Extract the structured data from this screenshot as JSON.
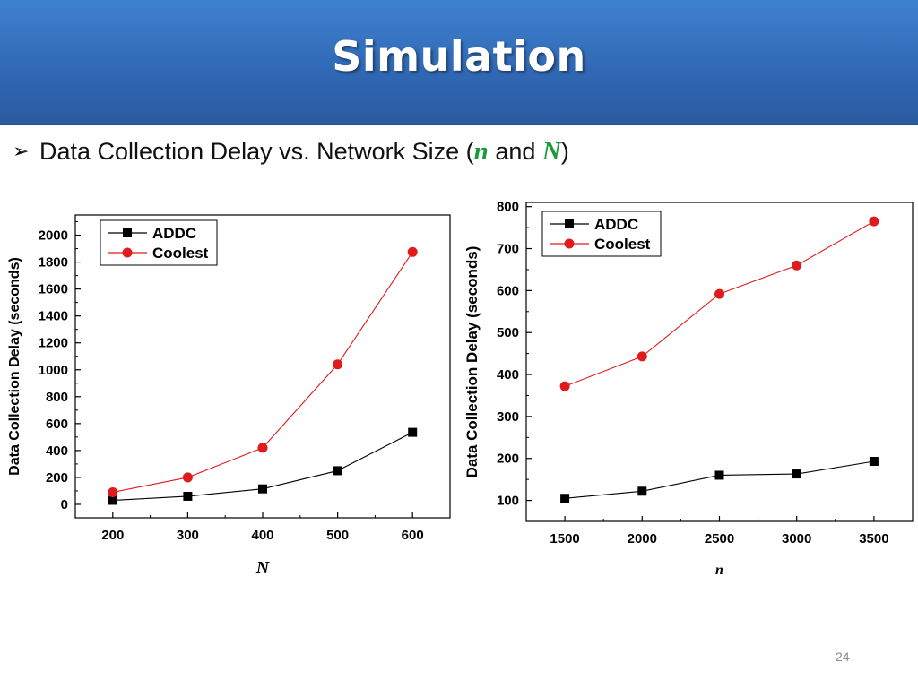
{
  "slide": {
    "title": "Simulation",
    "bullet": {
      "icon": "arrow-bullet-icon",
      "text_before": "Data Collection Delay vs. Network Size (",
      "var1": "n",
      "text_middle": " and ",
      "var2": "N",
      "text_after": ")"
    },
    "page_number": "24"
  },
  "colors": {
    "banner": "#3169b6",
    "title": "#ffffff",
    "highlight_var": "#1a9a3c",
    "addc": "#000000",
    "coolest": "#e01b1b"
  },
  "chart_data": [
    {
      "type": "line",
      "xlabel": "N",
      "ylabel": "Data Collection Delay (seconds)",
      "x": [
        200,
        300,
        400,
        500,
        600
      ],
      "xlim": [
        150,
        650
      ],
      "ylim": [
        -100,
        2150
      ],
      "xticks": [
        200,
        300,
        400,
        500,
        600
      ],
      "yticks": [
        0,
        200,
        400,
        600,
        800,
        1000,
        1200,
        1400,
        1600,
        1800,
        2000
      ],
      "legend_position": "top-left",
      "series": [
        {
          "name": "ADDC",
          "marker": "square",
          "color": "#000000",
          "values": [
            30,
            60,
            115,
            250,
            535
          ]
        },
        {
          "name": "Coolest",
          "marker": "circle",
          "color": "#e01b1b",
          "values": [
            90,
            200,
            420,
            1040,
            1875
          ]
        }
      ]
    },
    {
      "type": "line",
      "xlabel": "n",
      "ylabel": "Data Collection Delay (seconds)",
      "x": [
        1500,
        2000,
        2500,
        3000,
        3500
      ],
      "xlim": [
        1250,
        3750
      ],
      "ylim": [
        50,
        810
      ],
      "xticks": [
        1500,
        2000,
        2500,
        3000,
        3500
      ],
      "yticks": [
        100,
        200,
        300,
        400,
        500,
        600,
        700,
        800
      ],
      "legend_position": "top-left",
      "series": [
        {
          "name": "ADDC",
          "marker": "square",
          "color": "#000000",
          "values": [
            105,
            122,
            160,
            163,
            193
          ]
        },
        {
          "name": "Coolest",
          "marker": "circle",
          "color": "#e01b1b",
          "values": [
            372,
            443,
            592,
            660,
            765
          ]
        }
      ]
    }
  ]
}
